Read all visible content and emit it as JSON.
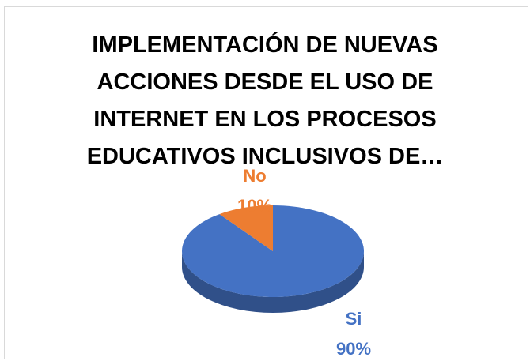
{
  "chart_data": {
    "type": "pie",
    "title": "IMPLEMENTACIÓN DE NUEVAS ACCIONES DESDE EL USO DE INTERNET EN LOS PROCESOS EDUCATIVOS INCLUSIVOS DE…",
    "categories": [
      "Si",
      "No"
    ],
    "values": [
      90,
      10
    ],
    "value_labels": [
      "90%",
      "10%"
    ],
    "colors": [
      "#4472c4",
      "#ed7d31"
    ]
  }
}
